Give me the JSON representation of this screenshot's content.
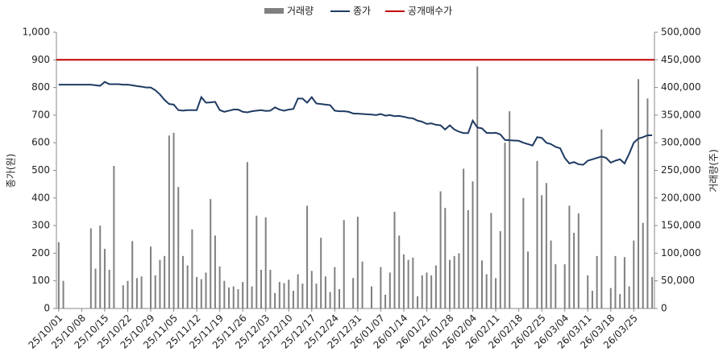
{
  "chart_data": {
    "type": "bar-line",
    "y_label": "종가(원)",
    "y2_label": "거래량(주)",
    "categories": [
      "25/10/01",
      null,
      null,
      null,
      null,
      "25/10/08",
      null,
      null,
      null,
      null,
      "25/10/15",
      null,
      null,
      null,
      null,
      "25/10/22",
      null,
      null,
      null,
      null,
      "25/10/29",
      null,
      null,
      null,
      null,
      "25/11/05",
      null,
      null,
      null,
      null,
      "25/11/12",
      null,
      null,
      null,
      null,
      "25/11/19",
      null,
      null,
      null,
      null,
      "25/11/26",
      null,
      null,
      null,
      null,
      "25/12/03",
      null,
      null,
      null,
      null,
      "25/12/10",
      null,
      null,
      null,
      null,
      "25/12/17",
      null,
      null,
      null,
      null,
      "25/12/24",
      null,
      null,
      null,
      null,
      "25/12/31",
      null,
      null,
      null,
      null,
      "26/01/07",
      null,
      null,
      null,
      null,
      "26/01/14",
      null,
      null,
      null,
      null,
      "26/01/21",
      null,
      null,
      null,
      null,
      "26/01/28",
      null,
      null,
      null,
      null,
      "26/02/04",
      null,
      null,
      null,
      null,
      "26/02/11",
      null,
      null,
      null,
      null,
      "26/02/18",
      null,
      null,
      null,
      null,
      "26/02/25",
      null,
      null,
      null,
      null,
      "26/03/04",
      null,
      null,
      null,
      null,
      "26/03/11",
      null,
      null,
      null,
      null,
      "26/03/18",
      null,
      null,
      null,
      null,
      "26/03/25",
      null,
      null,
      null,
      null
    ],
    "series": [
      {
        "name": "거래량",
        "type": "bar",
        "axis": "y2",
        "color": "#808080",
        "values": [
          120000,
          50000,
          0,
          0,
          0,
          0,
          0,
          145000,
          72000,
          150000,
          108000,
          70000,
          258000,
          0,
          42000,
          50000,
          122000,
          55000,
          58000,
          0,
          112000,
          60000,
          88000,
          95000,
          313000,
          318000,
          220000,
          95000,
          78000,
          143000,
          57000,
          53000,
          65000,
          198000,
          132000,
          76000,
          50000,
          38000,
          40000,
          35000,
          48000,
          265000,
          40000,
          168000,
          70000,
          165000,
          70000,
          28000,
          48000,
          46000,
          52000,
          32000,
          62000,
          45000,
          186000,
          68000,
          45000,
          128000,
          58000,
          30000,
          75000,
          35000,
          160000,
          0,
          55000,
          166000,
          85000,
          0,
          40000,
          0,
          75000,
          25000,
          65000,
          175000,
          132000,
          98000,
          88000,
          92000,
          22000,
          60000,
          65000,
          60000,
          78000,
          212000,
          182000,
          88000,
          95000,
          100000,
          253000,
          178000,
          230000,
          438000,
          87000,
          62000,
          173000,
          55000,
          140000,
          300000,
          357000,
          0,
          0,
          200000,
          103000,
          0,
          267000,
          205000,
          227000,
          123000,
          80000,
          0,
          80000,
          186000,
          137000,
          172000,
          0,
          60000,
          32000,
          95000,
          324000,
          0,
          37000,
          95000,
          26000,
          93000,
          40000,
          123000,
          415000,
          155000,
          380000,
          57000
        ]
      },
      {
        "name": "종가",
        "type": "line",
        "color": "#1f3b63",
        "values": [
          810,
          810,
          810,
          810,
          810,
          810,
          810,
          810,
          808,
          806,
          820,
          812,
          812,
          812,
          810,
          810,
          808,
          805,
          803,
          800,
          800,
          790,
          775,
          755,
          740,
          738,
          718,
          716,
          718,
          718,
          718,
          765,
          745,
          746,
          748,
          718,
          712,
          716,
          720,
          720,
          712,
          710,
          714,
          716,
          718,
          715,
          716,
          728,
          720,
          716,
          720,
          722,
          760,
          760,
          745,
          765,
          742,
          740,
          738,
          736,
          716,
          714,
          714,
          712,
          706,
          705,
          704,
          703,
          702,
          700,
          704,
          698,
          700,
          696,
          697,
          694,
          690,
          688,
          680,
          676,
          668,
          670,
          665,
          663,
          648,
          663,
          648,
          640,
          635,
          635,
          680,
          655,
          652,
          636,
          635,
          636,
          630,
          610,
          609,
          608,
          607,
          600,
          595,
          590,
          620,
          618,
          600,
          595,
          585,
          580,
          545,
          525,
          530,
          522,
          520,
          535,
          540,
          545,
          550,
          545,
          528,
          535,
          540,
          525,
          560,
          600,
          615,
          620,
          627,
          627
        ]
      }
    ],
    "reference_line": {
      "name": "공개매수가",
      "value": 900,
      "color": "#c00000"
    },
    "ylim": [
      0,
      1000
    ],
    "yticks": [
      0,
      100,
      200,
      300,
      400,
      500,
      600,
      700,
      800,
      900,
      {
        "value": 1000,
        "label": "1,000"
      }
    ],
    "y2lim": [
      0,
      500000
    ],
    "y2ticks": [
      0,
      {
        "value": 50000,
        "label": "50,000"
      },
      {
        "value": 100000,
        "label": "100,000"
      },
      {
        "value": 150000,
        "label": "150,000"
      },
      {
        "value": 200000,
        "label": "200,000"
      },
      {
        "value": 250000,
        "label": "250,000"
      },
      {
        "value": 300000,
        "label": "300,000"
      },
      {
        "value": 350000,
        "label": "350,000"
      },
      {
        "value": 400000,
        "label": "400,000"
      },
      {
        "value": 450000,
        "label": "450,000"
      },
      {
        "value": 500000,
        "label": "500,000"
      }
    ]
  }
}
